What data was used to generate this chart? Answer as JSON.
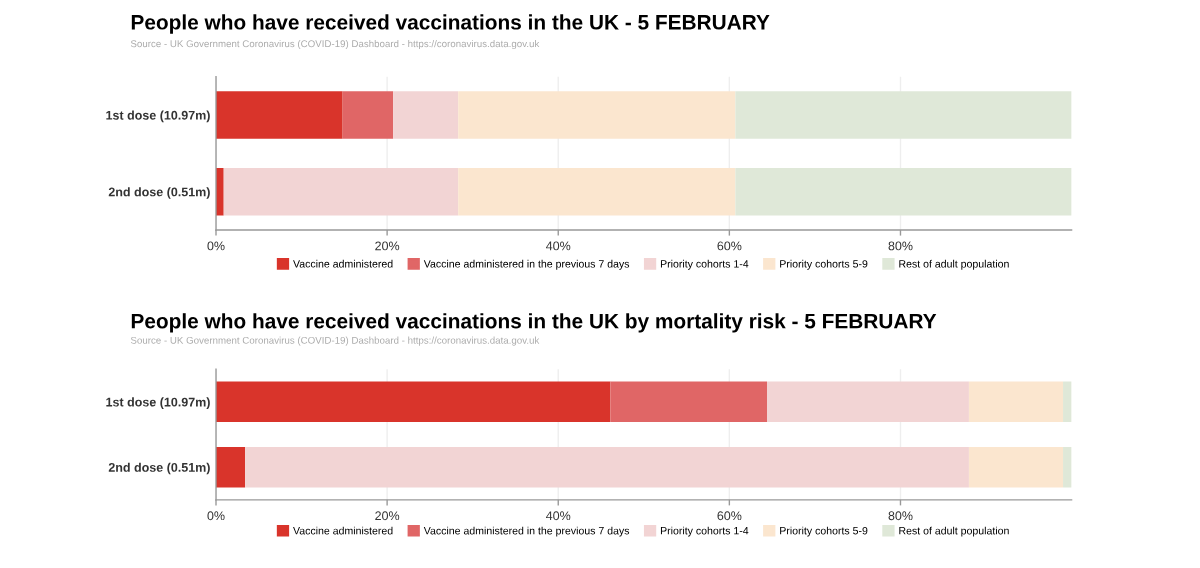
{
  "chart_data": [
    {
      "type": "bar",
      "orientation": "horizontal",
      "stacked": true,
      "title": "People who have received vaccinations in the UK - 5 FEBRUARY",
      "subtitle": "Source - UK Government Coronavirus (COVID-19) Dashboard - https://coronavirus.data.gov.uk",
      "categories": [
        "1st dose (10.97m)",
        "2nd dose (0.51m)"
      ],
      "series": [
        {
          "name": "Vaccine administered",
          "color": "#d9342b",
          "values": [
            14.8,
            0.9
          ]
        },
        {
          "name": "Vaccine administered in the previous 7 days",
          "color": "#e06666",
          "values": [
            5.9,
            0
          ]
        },
        {
          "name": "Priority cohorts 1-4",
          "color": "#f2d4d4",
          "values": [
            7.6,
            27.4
          ]
        },
        {
          "name": "Priority cohorts 5-9",
          "color": "#fbe6cf",
          "values": [
            32.4,
            32.4
          ]
        },
        {
          "name": "Rest of adult population",
          "color": "#dfe8d8",
          "values": [
            39.3,
            39.3
          ]
        }
      ],
      "xlim": [
        0,
        100
      ],
      "xticks": [
        {
          "value": 0,
          "label": "0%"
        },
        {
          "value": 20,
          "label": "20%"
        },
        {
          "value": 40,
          "label": "40%"
        },
        {
          "value": 60,
          "label": "60%"
        },
        {
          "value": 80,
          "label": "80%"
        }
      ],
      "grid": "x",
      "legend": "bottom"
    },
    {
      "type": "bar",
      "orientation": "horizontal",
      "stacked": true,
      "title": "People who have received vaccinations in the UK by mortality risk - 5 FEBRUARY",
      "subtitle": "Source - UK Government Coronavirus (COVID-19) Dashboard - https://coronavirus.data.gov.uk",
      "categories": [
        "1st dose (10.97m)",
        "2nd dose (0.51m)"
      ],
      "series": [
        {
          "name": "Vaccine administered",
          "color": "#d9342b",
          "values": [
            46.1,
            3.4
          ]
        },
        {
          "name": "Vaccine administered in the previous 7 days",
          "color": "#e06666",
          "values": [
            18.3,
            0
          ]
        },
        {
          "name": "Priority cohorts 1-4",
          "color": "#f2d4d4",
          "values": [
            23.6,
            84.6
          ]
        },
        {
          "name": "Priority cohorts 5-9",
          "color": "#fbe6cf",
          "values": [
            11.0,
            11.0
          ]
        },
        {
          "name": "Rest of adult population",
          "color": "#dfe8d8",
          "values": [
            1.0,
            1.0
          ]
        }
      ],
      "xlim": [
        0,
        100
      ],
      "xticks": [
        {
          "value": 0,
          "label": "0%"
        },
        {
          "value": 20,
          "label": "20%"
        },
        {
          "value": 40,
          "label": "40%"
        },
        {
          "value": 60,
          "label": "60%"
        },
        {
          "value": 80,
          "label": "80%"
        }
      ],
      "grid": "x",
      "legend": "bottom"
    }
  ]
}
